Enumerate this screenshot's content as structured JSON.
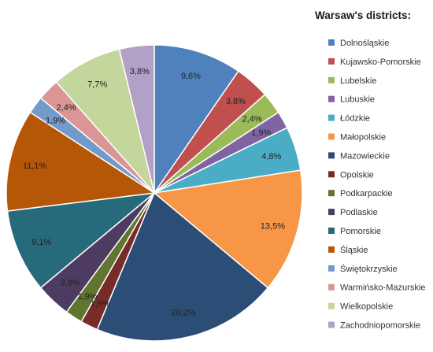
{
  "chart_data": {
    "type": "pie",
    "title": "",
    "legend_title": "Warsaw's districts:",
    "legend_position": "right",
    "start_angle_deg": 0,
    "direction": "clockwise",
    "slices": [
      {
        "name": "Dolnośląskie",
        "value": 9.6,
        "label": "9,6%",
        "color": "#4f81bd"
      },
      {
        "name": "Kujawsko-Pomorskie",
        "value": 3.8,
        "label": "3,8%",
        "color": "#c0504d"
      },
      {
        "name": "Lubelskie",
        "value": 2.4,
        "label": "2,4%",
        "color": "#9bbb59"
      },
      {
        "name": "Lubuskie",
        "value": 1.9,
        "label": "1,9%",
        "color": "#8064a2"
      },
      {
        "name": "Łódzkie",
        "value": 4.8,
        "label": "4,8%",
        "color": "#4bacc6"
      },
      {
        "name": "Małopolskie",
        "value": 13.5,
        "label": "13,5%",
        "color": "#f79646"
      },
      {
        "name": "Mazowieckie",
        "value": 20.2,
        "label": "20,2%",
        "color": "#2c4d75"
      },
      {
        "name": "Opolskie",
        "value": 1.9,
        "label": "1,9%",
        "color": "#772c2a"
      },
      {
        "name": "Podkarpackie",
        "value": 1.9,
        "label": "1,9%",
        "color": "#5f7530"
      },
      {
        "name": "Podlaskie",
        "value": 3.8,
        "label": "3,8%",
        "color": "#4d3b62"
      },
      {
        "name": "Pomorskie",
        "value": 9.1,
        "label": "9,1%",
        "color": "#276a7c"
      },
      {
        "name": "Śląskie",
        "value": 11.1,
        "label": "11,1%",
        "color": "#b65708"
      },
      {
        "name": "Świętokrzyskie",
        "value": 1.9,
        "label": "1,9%",
        "color": "#729aca"
      },
      {
        "name": "Warmińsko-Mazurskie",
        "value": 2.4,
        "label": "2,4%",
        "color": "#d99694"
      },
      {
        "name": "Wielkopolskie",
        "value": 7.7,
        "label": "7,7%",
        "color": "#c3d69b"
      },
      {
        "name": "Zachodniopomorskie",
        "value": 3.8,
        "label": "3,8%",
        "color": "#b2a1c7"
      }
    ]
  }
}
